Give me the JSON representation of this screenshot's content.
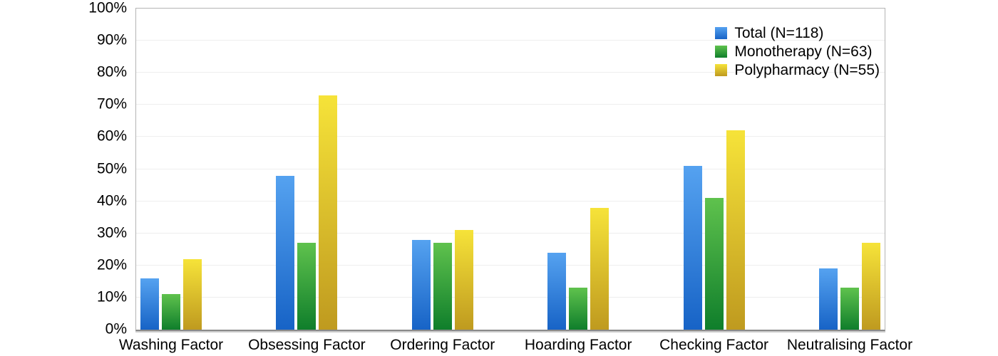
{
  "chart_data": {
    "type": "bar",
    "title": "",
    "xlabel": "",
    "ylabel": "",
    "ylim": [
      0,
      100
    ],
    "ytick_step": 10,
    "ytick_labels": [
      "0%",
      "10%",
      "20%",
      "30%",
      "40%",
      "50%",
      "60%",
      "70%",
      "80%",
      "90%",
      "100%"
    ],
    "grid": true,
    "legend_position": "top-right",
    "categories": [
      "Washing Factor",
      "Obsessing Factor",
      "Ordering Factor",
      "Hoarding Factor",
      "Checking Factor",
      "Neutralising Factor"
    ],
    "series": [
      {
        "name": "Total (N=118)",
        "values": [
          16,
          48,
          28,
          24,
          51,
          19
        ],
        "color_top": "#55a2f0",
        "color_bottom": "#1763c6"
      },
      {
        "name": "Monotherapy (N=63)",
        "values": [
          11,
          27,
          27,
          13,
          41,
          13
        ],
        "color_top": "#5fc24d",
        "color_bottom": "#0f7e2b"
      },
      {
        "name": "Polypharmacy (N=55)",
        "values": [
          22,
          73,
          31,
          38,
          62,
          27
        ],
        "color_top": "#f6e339",
        "color_bottom": "#bf9a1f"
      }
    ]
  },
  "colors": {
    "gridline": "#eeeeee",
    "plot_border": "#b4b4b4",
    "x_axis_line": "#8a8a8a",
    "x_axis_shadow": "#cccccc",
    "text": "#000000",
    "background": "#ffffff"
  }
}
